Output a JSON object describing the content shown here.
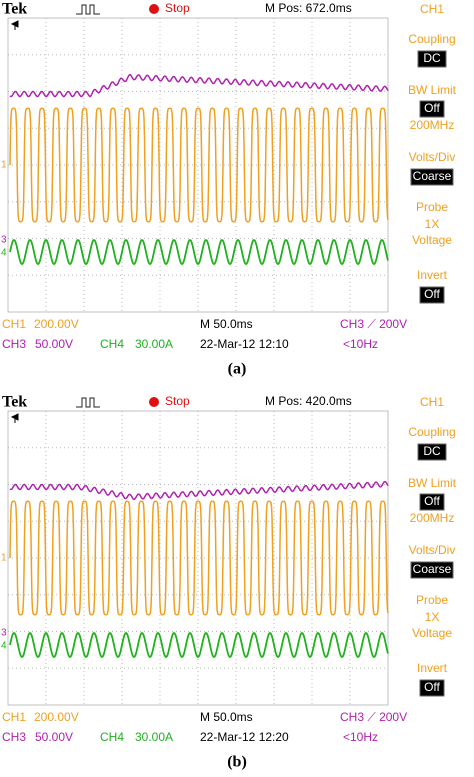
{
  "panels": [
    {
      "top": {
        "brand": "Tek",
        "state": "Stop",
        "position": "M Pos: 672.0ms",
        "channel": "CH1"
      },
      "markers": [
        "1",
        "3",
        "4"
      ],
      "menu": {
        "coupling": "Coupling",
        "coupling_value": "DC",
        "bw_limit": "BW Limit",
        "bw_value": "Off",
        "bw_freq": "200MHz",
        "volts_div": "Volts/Div",
        "volts_value": "Coarse",
        "probe": "Probe",
        "probe_gain": "1X",
        "probe_type": "Voltage",
        "invert": "Invert",
        "invert_value": "Off"
      },
      "status": {
        "ch1": "CH1",
        "ch1_scale": "200.00V",
        "timebase": "M 50.0ms",
        "trigger": "CH3 ⟋ 200V",
        "ch3": "CH3",
        "ch3_scale": "50.00V",
        "ch4": "CH4",
        "ch4_scale": "30.00A",
        "date": "22-Mar-12 12:10",
        "freq": "<10Hz"
      },
      "caption": "(a)"
    },
    {
      "top": {
        "brand": "Tek",
        "state": "Stop",
        "position": "M Pos: 420.0ms",
        "channel": "CH1"
      },
      "markers": [
        "1",
        "3",
        "4"
      ],
      "menu": {
        "coupling": "Coupling",
        "coupling_value": "DC",
        "bw_limit": "BW Limit",
        "bw_value": "Off",
        "bw_freq": "200MHz",
        "volts_div": "Volts/Div",
        "volts_value": "Coarse",
        "probe": "Probe",
        "probe_gain": "1X",
        "probe_type": "Voltage",
        "invert": "Invert",
        "invert_value": "Off"
      },
      "status": {
        "ch1": "CH1",
        "ch1_scale": "200.00V",
        "timebase": "M 50.0ms",
        "trigger": "CH3 ⟋ 200V",
        "ch3": "CH3",
        "ch3_scale": "50.00V",
        "ch4": "CH4",
        "ch4_scale": "30.00A",
        "date": "22-Mar-12 12:20",
        "freq": "<10Hz"
      },
      "caption": "(b)"
    }
  ]
}
